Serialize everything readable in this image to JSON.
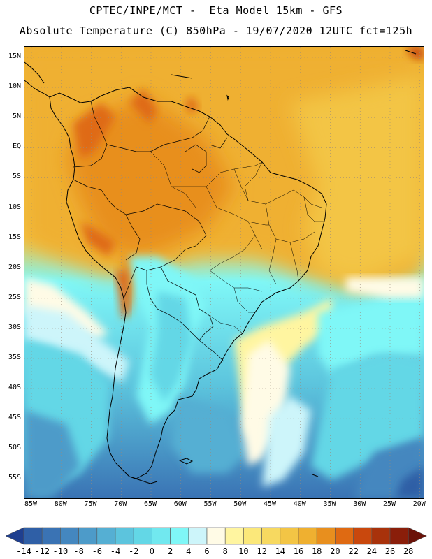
{
  "title_line1": "CPTEC/INPE/MCT -  Eta Model 15km - GFS",
  "title_line2": "Absolute Temperature (C) 850hPa - 19/07/2020 12UTC fct=125h",
  "map": {
    "lat_labels": [
      "15N",
      "10N",
      "5N",
      "EQ",
      "5S",
      "10S",
      "15S",
      "20S",
      "25S",
      "30S",
      "35S",
      "40S",
      "45S",
      "50S",
      "55S"
    ],
    "lat_values": [
      15,
      10,
      5,
      0,
      -5,
      -10,
      -15,
      -20,
      -25,
      -30,
      -35,
      -40,
      -45,
      -50,
      -55
    ],
    "lon_labels": [
      "85W",
      "80W",
      "75W",
      "70W",
      "65W",
      "60W",
      "55W",
      "50W",
      "45W",
      "40W",
      "35W",
      "30W",
      "25W",
      "20W"
    ],
    "lon_values": [
      -85,
      -80,
      -75,
      -70,
      -65,
      -60,
      -55,
      -50,
      -45,
      -40,
      -35,
      -30,
      -25,
      -20
    ],
    "grid": true
  },
  "colorbar": {
    "labels": [
      "-14",
      "-12",
      "-10",
      "-8",
      "-6",
      "-4",
      "-2",
      "0",
      "2",
      "4",
      "6",
      "8",
      "10",
      "12",
      "14",
      "16",
      "18",
      "20",
      "22",
      "24",
      "26",
      "28"
    ],
    "colors": [
      "#1f3f8f",
      "#2f5fa6",
      "#3a73b4",
      "#4487bf",
      "#4d9bc9",
      "#55afd3",
      "#5cc4dd",
      "#63d7e6",
      "#71e8ef",
      "#7ff7f7",
      "#cdf5fa",
      "#fffbe6",
      "#fff5a0",
      "#fbe87a",
      "#f7d960",
      "#f3c545",
      "#efb030",
      "#e88f1e",
      "#df6a12",
      "#c9480d",
      "#a8320b",
      "#8a1e0a",
      "#6b1208"
    ]
  }
}
